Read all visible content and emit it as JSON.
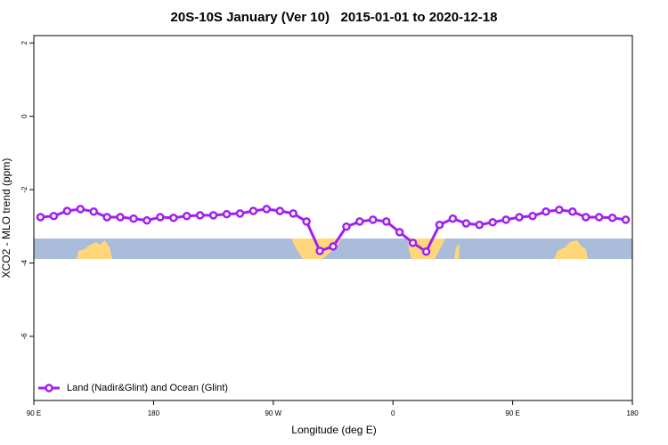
{
  "chart_data": {
    "type": "line",
    "title": "20S-10S January (Ver 10)   2015-01-01 to 2020-12-18",
    "xlabel": "Longitude (deg E)",
    "ylabel": "XCO2 - MLO trend (ppm)",
    "xlim": [
      90,
      540
    ],
    "xticks": [
      {
        "value": 90,
        "label": "90 E"
      },
      {
        "value": 180,
        "label": "180"
      },
      {
        "value": 270,
        "label": "90 W"
      },
      {
        "value": 360,
        "label": "0"
      },
      {
        "value": 450,
        "label": "90 E"
      },
      {
        "value": 540,
        "label": "180"
      }
    ],
    "ylim": [
      -7.75,
      2.2
    ],
    "yticks": [
      2,
      0,
      -2,
      -4,
      -6
    ],
    "legend": "bottomleft",
    "x": [
      95,
      105,
      115,
      125,
      135,
      145,
      155,
      165,
      175,
      185,
      195,
      205,
      215,
      225,
      235,
      245,
      255,
      265,
      275,
      285,
      295,
      305,
      315,
      325,
      335,
      345,
      355,
      365,
      375,
      385,
      395,
      405,
      415,
      425,
      435,
      445,
      455,
      465,
      475,
      485,
      495,
      505,
      515,
      525,
      535
    ],
    "series": [
      {
        "name": "Land (Nadir&Glint) and Ocean (Glint)",
        "color": "#a020f0",
        "values": [
          -2.75,
          -2.72,
          -2.58,
          -2.53,
          -2.6,
          -2.75,
          -2.75,
          -2.79,
          -2.84,
          -2.75,
          -2.77,
          -2.72,
          -2.7,
          -2.7,
          -2.67,
          -2.65,
          -2.58,
          -2.53,
          -2.58,
          -2.65,
          -2.87,
          -3.67,
          -3.55,
          -3.01,
          -2.87,
          -2.82,
          -2.87,
          -3.16,
          -3.45,
          -3.69,
          -2.96,
          -2.79,
          -2.92,
          -2.96,
          -2.89,
          -2.82,
          -2.75,
          -2.72,
          -2.6,
          -2.55,
          -2.6,
          -2.75,
          -2.75,
          -2.77,
          -2.82
        ]
      }
    ]
  }
}
